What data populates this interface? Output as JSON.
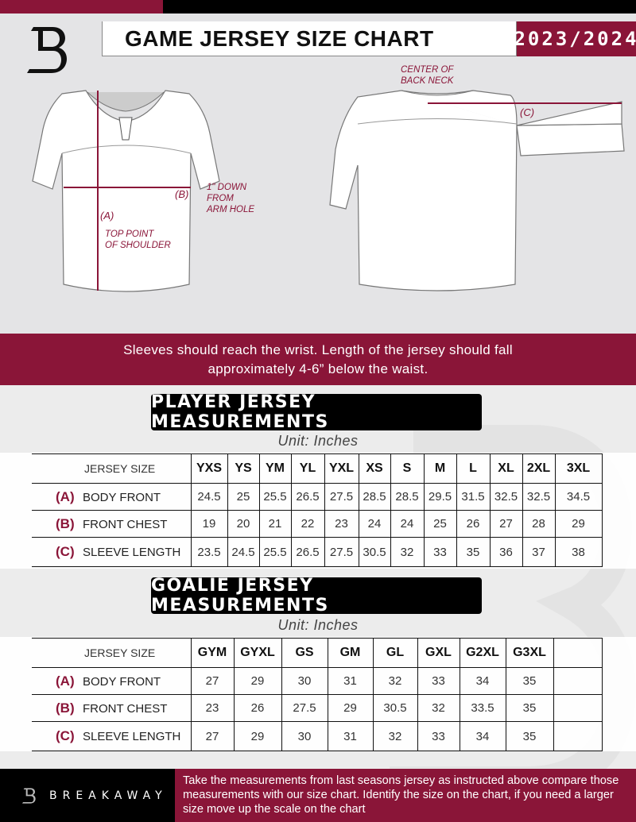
{
  "header": {
    "title": "GAME JERSEY SIZE CHART",
    "season": "2023/2024",
    "logo_text": "B"
  },
  "diagram": {
    "front_labels": {
      "a": "(A)",
      "b": "(B)",
      "top_point_1": "TOP POINT",
      "top_point_2": "OF SHOULDER",
      "down_1": "1\" DOWN",
      "down_2": "FROM",
      "down_3": "ARM HOLE"
    },
    "back_labels": {
      "c": "(C)",
      "center_1": "CENTER OF",
      "center_2": "BACK NECK"
    }
  },
  "instruction_line1": "Sleeves should reach the wrist. Length of the jersey should fall",
  "instruction_line2": "approximately 4-6” below the waist.",
  "player": {
    "title": "PLAYER JERSEY MEASUREMENTS",
    "unit": "Unit: Inches",
    "size_header": "JERSEY SIZE",
    "sizes": [
      "YXS",
      "YS",
      "YM",
      "YL",
      "YXL",
      "XS",
      "S",
      "M",
      "L",
      "XL",
      "2XL",
      "3XL"
    ],
    "rows": [
      {
        "key": "(A)",
        "label": "BODY FRONT",
        "values": [
          "24.5",
          "25",
          "25.5",
          "26.5",
          "27.5",
          "28.5",
          "28.5",
          "29.5",
          "31.5",
          "32.5",
          "32.5",
          "34.5"
        ]
      },
      {
        "key": "(B)",
        "label": "FRONT CHEST",
        "values": [
          "19",
          "20",
          "21",
          "22",
          "23",
          "24",
          "24",
          "25",
          "26",
          "27",
          "28",
          "29"
        ]
      },
      {
        "key": "(C)",
        "label": "SLEEVE LENGTH",
        "values": [
          "23.5",
          "24.5",
          "25.5",
          "26.5",
          "27.5",
          "30.5",
          "32",
          "33",
          "35",
          "36",
          "37",
          "38"
        ]
      }
    ]
  },
  "goalie": {
    "title": "GOALIE JERSEY MEASUREMENTS",
    "unit": "Unit: Inches",
    "size_header": "JERSEY SIZE",
    "sizes": [
      "GYM",
      "GYXL",
      "GS",
      "GM",
      "GL",
      "GXL",
      "G2XL",
      "G3XL",
      ""
    ],
    "rows": [
      {
        "key": "(A)",
        "label": "BODY FRONT",
        "values": [
          "27",
          "29",
          "30",
          "31",
          "32",
          "33",
          "34",
          "35",
          ""
        ]
      },
      {
        "key": "(B)",
        "label": "FRONT CHEST",
        "values": [
          "23",
          "26",
          "27.5",
          "29",
          "30.5",
          "32",
          "33.5",
          "35",
          ""
        ]
      },
      {
        "key": "(C)",
        "label": "SLEEVE LENGTH",
        "values": [
          "27",
          "29",
          "30",
          "31",
          "32",
          "33",
          "34",
          "35",
          ""
        ]
      }
    ]
  },
  "footer": {
    "brand": "BREAKAWAY",
    "text": "Take the measurements from last seasons jersey as instructed above compare those measurements  with our size chart. Identify the size on the chart, if you need a larger size move up the scale on the chart"
  },
  "colors": {
    "accent": "#8a1538",
    "dark": "#000000",
    "background": "#e4e4e6"
  }
}
